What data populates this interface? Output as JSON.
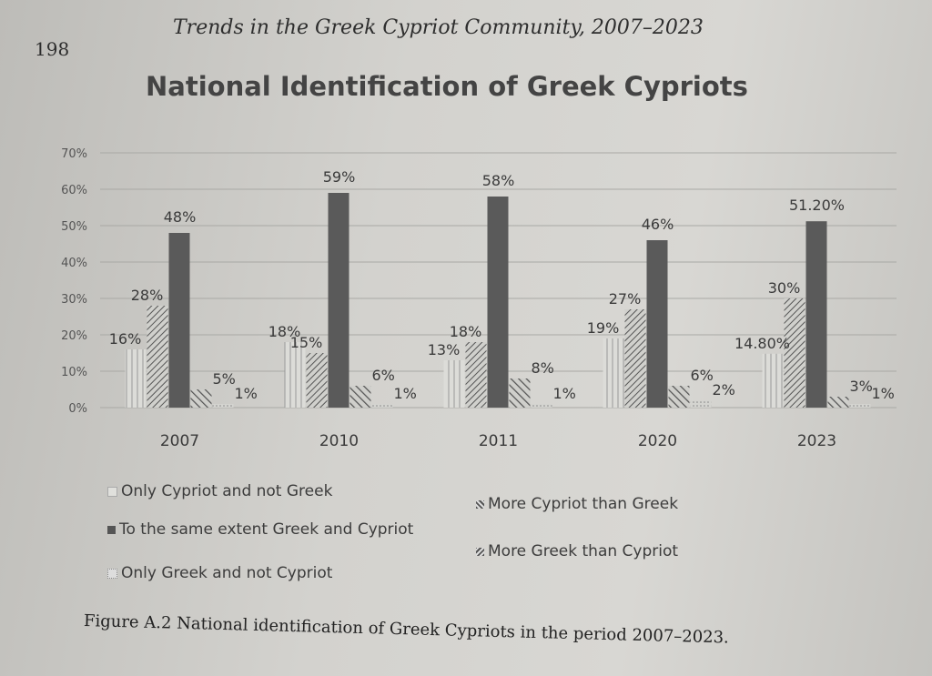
{
  "page_number": "198",
  "running_header": "Trends in the Greek Cypriot Community, 2007–2023",
  "caption": "Figure A.2  National identification of Greek Cypriots in the period 2007–2023.",
  "chart_data": {
    "type": "bar",
    "title": "National Identification of Greek Cypriots",
    "categories": [
      "2007",
      "2010",
      "2011",
      "2020",
      "2023"
    ],
    "ylim": [
      0,
      70
    ],
    "yticks": [
      "0%",
      "10%",
      "20%",
      "30%",
      "40%",
      "50%",
      "60%",
      "70%"
    ],
    "grid": true,
    "legend_position": "bottom",
    "series": [
      {
        "name": "Only Cypriot and not Greek",
        "values": [
          16,
          18,
          13,
          19,
          14.8
        ],
        "labels": [
          "16%",
          "18%",
          "13%",
          "19%",
          "14.80%"
        ],
        "pattern": "vertical-lines"
      },
      {
        "name": "More Cypriot than Greek",
        "values": [
          28,
          15,
          18,
          27,
          30
        ],
        "labels": [
          "28%",
          "15%",
          "18%",
          "27%",
          "30%"
        ],
        "pattern": "diagonal-hatch"
      },
      {
        "name": "To the same extent Greek and Cypriot",
        "values": [
          48,
          59,
          58,
          46,
          51.2
        ],
        "labels": [
          "48%",
          "59%",
          "58%",
          "46%",
          "51.20%"
        ],
        "pattern": "solid-dark"
      },
      {
        "name": "More Greek than Cypriot",
        "values": [
          5,
          6,
          8,
          6,
          3
        ],
        "labels": [
          "5%",
          "6%",
          "8%",
          "6%",
          "3%"
        ],
        "pattern": "wide-hatch"
      },
      {
        "name": "Only Greek and not Cypriot",
        "values": [
          1,
          1,
          1,
          2,
          1
        ],
        "labels": [
          "1%",
          "1%",
          "1%",
          "2%",
          "1%"
        ],
        "pattern": "light-dots"
      }
    ]
  }
}
